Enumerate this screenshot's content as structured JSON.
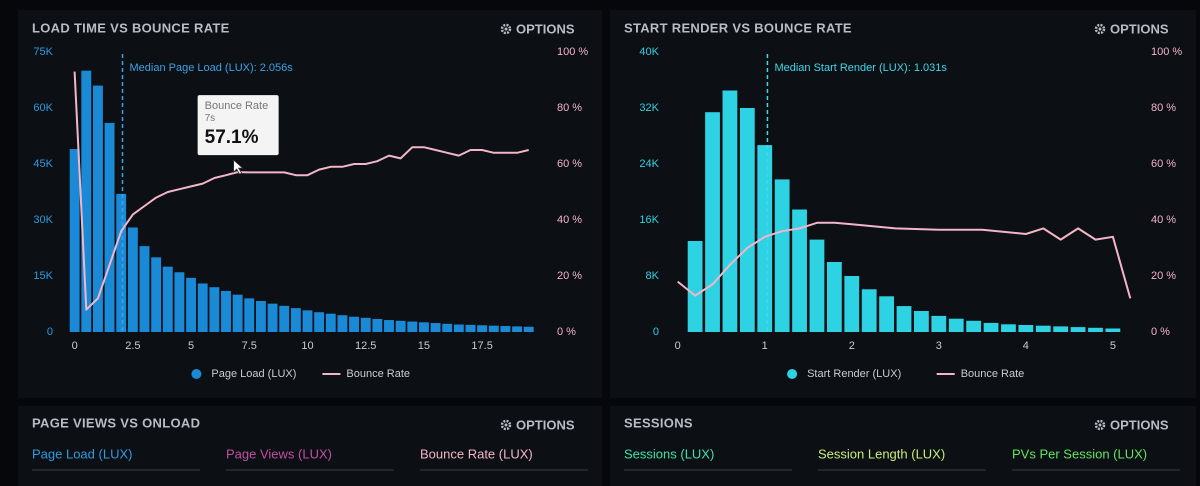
{
  "chart_data": [
    {
      "type": "bar",
      "title": "LOAD TIME VS BOUNCE RATE",
      "options": "OPTIONS",
      "xlim": [
        -0.5,
        20.2
      ],
      "xticks": [
        0,
        2.5,
        5,
        7.5,
        10,
        12.5,
        15,
        17.5
      ],
      "ylim": [
        0,
        75000
      ],
      "yticks": [
        0,
        {
          "value": 15000,
          "label": "15K"
        },
        {
          "value": 30000,
          "label": "30K"
        },
        {
          "value": 45000,
          "label": "45K"
        },
        {
          "value": 60000,
          "label": "60K"
        },
        {
          "value": 75000,
          "label": "75K"
        }
      ],
      "y2lim": [
        0,
        100
      ],
      "y2ticks": [
        {
          "value": 0,
          "label": "0 %"
        },
        {
          "value": 20,
          "label": "20 %"
        },
        {
          "value": 40,
          "label": "40 %"
        },
        {
          "value": 60,
          "label": "60 %"
        },
        {
          "value": 80,
          "label": "80 %"
        },
        {
          "value": 100,
          "label": "100 %"
        }
      ],
      "median": {
        "value": 2.056,
        "label": "Median Page Load (LUX): 2.056s"
      },
      "tooltip": {
        "title": "Bounce Rate",
        "x": 7,
        "x_label": "7s",
        "value": 57.1,
        "value_label": "57.1%"
      },
      "series": [
        {
          "name": "Page Load (LUX)",
          "type": "bar",
          "color": "#1b8ad6",
          "x": [
            0,
            0.5,
            1,
            1.5,
            2,
            2.5,
            3,
            3.5,
            4,
            4.5,
            5,
            5.5,
            6,
            6.5,
            7,
            7.5,
            8,
            8.5,
            9,
            9.5,
            10,
            10.5,
            11,
            11.5,
            12,
            12.5,
            13,
            13.5,
            14,
            14.5,
            15,
            15.5,
            16,
            16.5,
            17,
            17.5,
            18,
            18.5,
            19,
            19.5
          ],
          "values": [
            49000,
            70000,
            66000,
            56000,
            37000,
            28000,
            23000,
            20000,
            17500,
            16000,
            14500,
            13000,
            12000,
            11000,
            10000,
            9000,
            8300,
            7600,
            7000,
            6400,
            5800,
            5300,
            4900,
            4500,
            4100,
            3800,
            3500,
            3200,
            3000,
            2800,
            2600,
            2400,
            2200,
            2000,
            1900,
            1800,
            1700,
            1600,
            1500,
            1400
          ]
        },
        {
          "name": "Bounce Rate",
          "type": "line",
          "axis": "y2",
          "color": "#f3b5c8",
          "x": [
            0,
            0.5,
            1,
            1.5,
            2,
            2.5,
            3,
            3.5,
            4,
            4.5,
            5,
            5.5,
            6,
            6.5,
            7,
            7.5,
            8,
            8.5,
            9,
            9.5,
            10,
            10.5,
            11,
            11.5,
            12,
            12.5,
            13,
            13.5,
            14,
            14.5,
            15,
            15.5,
            16,
            16.5,
            17,
            17.5,
            18,
            18.5,
            19,
            19.5
          ],
          "values": [
            93,
            8,
            12,
            24,
            36,
            42,
            45,
            48,
            50,
            51,
            52,
            53,
            55,
            56,
            57.1,
            57,
            57,
            57,
            57,
            56,
            56,
            58,
            59,
            59,
            60,
            60,
            61,
            63,
            62,
            66,
            66,
            65,
            64,
            63,
            65,
            65,
            64,
            64,
            64,
            65
          ]
        }
      ]
    },
    {
      "type": "bar",
      "title": "START RENDER VS BOUNCE RATE",
      "options": "OPTIONS",
      "xlim": [
        -0.1,
        5.3
      ],
      "xticks": [
        0,
        1,
        2,
        3,
        4,
        5
      ],
      "ylim": [
        0,
        40000
      ],
      "yticks": [
        0,
        {
          "value": 8000,
          "label": "8K"
        },
        {
          "value": 16000,
          "label": "16K"
        },
        {
          "value": 24000,
          "label": "24K"
        },
        {
          "value": 32000,
          "label": "32K"
        },
        {
          "value": 40000,
          "label": "40K"
        }
      ],
      "y2lim": [
        0,
        100
      ],
      "y2ticks": [
        {
          "value": 0,
          "label": "0 %"
        },
        {
          "value": 20,
          "label": "20 %"
        },
        {
          "value": 40,
          "label": "40 %"
        },
        {
          "value": 60,
          "label": "60 %"
        },
        {
          "value": 80,
          "label": "80 %"
        },
        {
          "value": 100,
          "label": "100 %"
        }
      ],
      "median": {
        "value": 1.031,
        "label": "Median Start Render (LUX): 1.031s"
      },
      "series": [
        {
          "name": "Start Render (LUX)",
          "type": "bar",
          "color": "#2ed3e3",
          "x": [
            0.2,
            0.4,
            0.6,
            0.8,
            1,
            1.2,
            1.4,
            1.6,
            1.8,
            2,
            2.2,
            2.4,
            2.6,
            2.8,
            3,
            3.2,
            3.4,
            3.6,
            3.8,
            4,
            4.2,
            4.4,
            4.6,
            4.8,
            5
          ],
          "values": [
            13000,
            31400,
            34500,
            32000,
            26700,
            21800,
            17500,
            13200,
            10000,
            8000,
            6100,
            5100,
            3700,
            3000,
            2300,
            1900,
            1600,
            1300,
            1100,
            1000,
            900,
            800,
            700,
            600,
            500
          ]
        },
        {
          "name": "Bounce Rate",
          "type": "line",
          "axis": "y2",
          "color": "#f3b5c8",
          "x": [
            0,
            0.2,
            0.4,
            0.6,
            0.8,
            1,
            1.2,
            1.4,
            1.6,
            1.8,
            2,
            2.5,
            3,
            3.5,
            4,
            4.2,
            4.4,
            4.6,
            4.8,
            5,
            5.2
          ],
          "values": [
            18,
            13,
            17,
            24,
            30,
            34,
            36,
            37,
            39,
            39,
            38.5,
            37,
            36.5,
            36.5,
            35,
            37,
            33,
            37,
            33,
            34,
            12
          ]
        }
      ]
    }
  ],
  "panels": [
    {
      "title": "PAGE VIEWS VS ONLOAD",
      "options": "OPTIONS",
      "stats": [
        "Page Load (LUX)",
        "Page Views (LUX)",
        "Bounce Rate (LUX)"
      ]
    },
    {
      "title": "SESSIONS",
      "options": "OPTIONS",
      "stats": [
        "Sessions (LUX)",
        "Session Length (LUX)",
        "PVs Per Session (LUX)"
      ]
    }
  ]
}
